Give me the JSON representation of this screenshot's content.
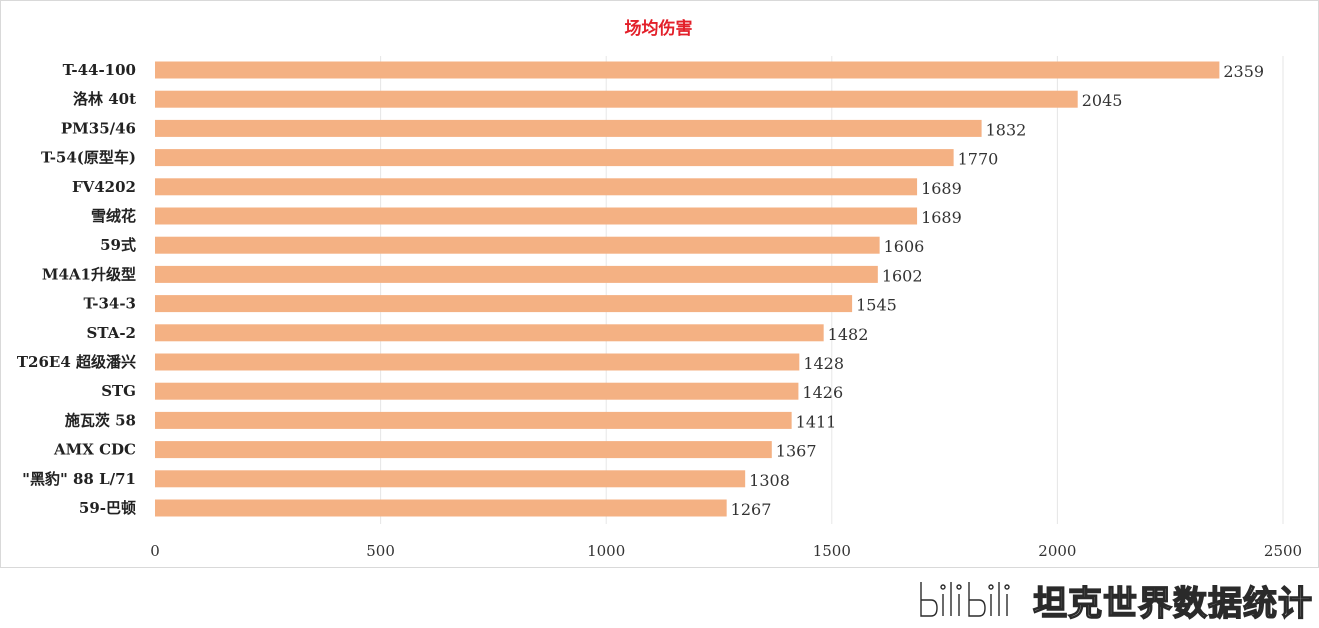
{
  "chart_data": {
    "type": "bar",
    "orientation": "horizontal",
    "title": "场均伤害",
    "categories": [
      "T-44-100",
      "洛林 40t",
      "PM35/46",
      "T-54(原型车)",
      "FV4202",
      "雪绒花",
      "59式",
      "M4A1升级型",
      "T-34-3",
      "STA-2",
      "T26E4 超级潘兴",
      "STG",
      "施瓦茨 58",
      "AMX CDC",
      "\"黑豹\" 88 L/71",
      "59-巴顿"
    ],
    "values": [
      2359,
      2045,
      1832,
      1770,
      1689,
      1689,
      1606,
      1602,
      1545,
      1482,
      1428,
      1426,
      1411,
      1367,
      1308,
      1267
    ],
    "xlim": [
      0,
      2500
    ],
    "xticks": [
      0,
      500,
      1000,
      1500,
      2000,
      2500
    ],
    "xlabel": "",
    "ylabel": "",
    "grid": "vertical",
    "legend": "none",
    "bar_color": "#f4b183",
    "title_color": "#e3202a"
  },
  "watermark": {
    "logo": "bilibili-logo",
    "text": "坦克世界数据统计"
  }
}
